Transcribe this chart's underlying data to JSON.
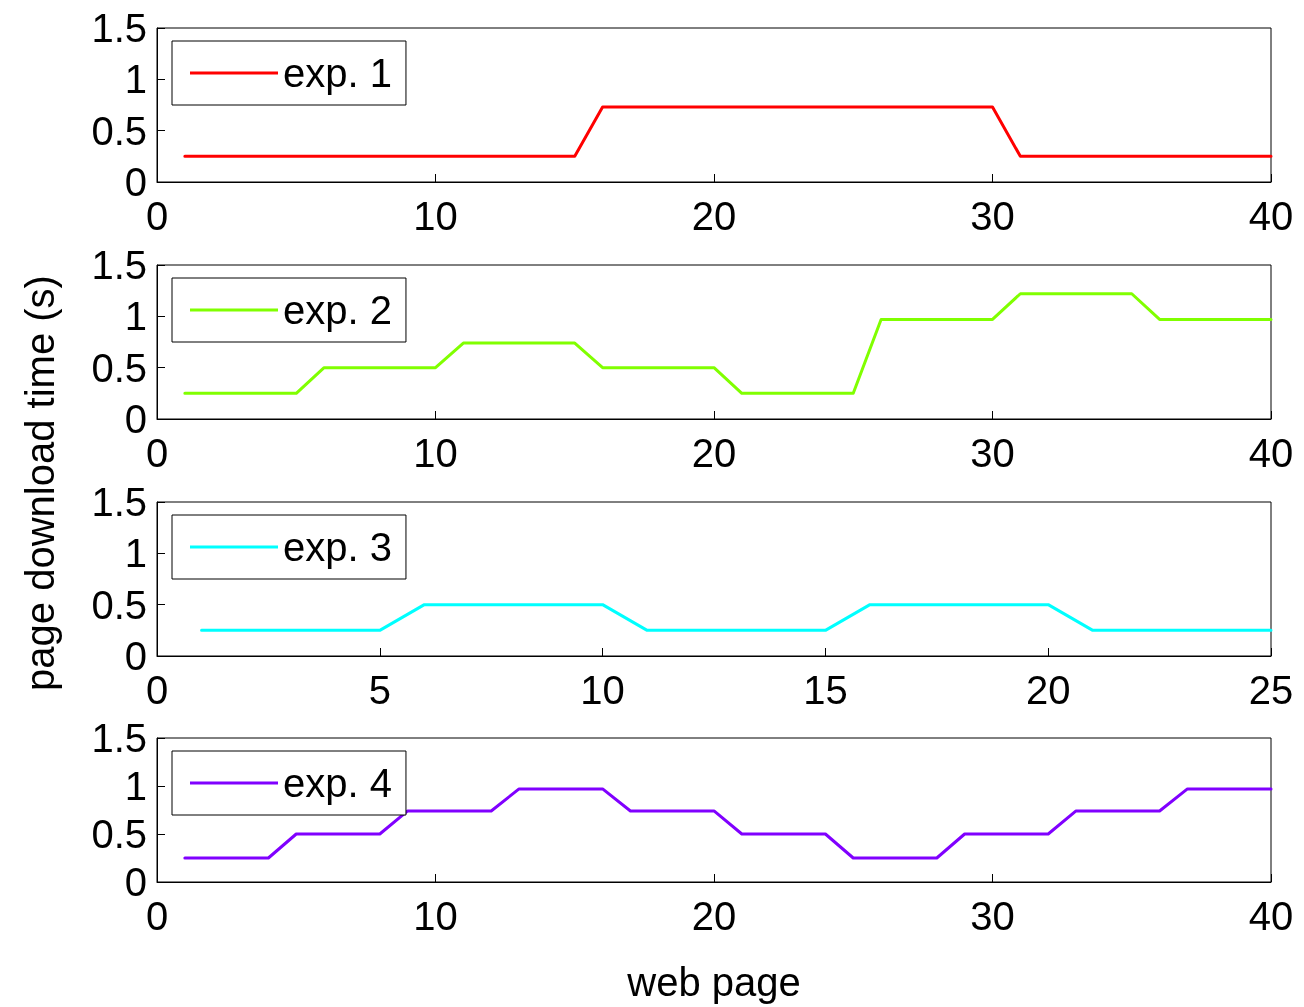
{
  "chart_data": [
    {
      "type": "line",
      "xlim": [
        0,
        40
      ],
      "xticks": [
        0,
        10,
        20,
        30,
        40
      ],
      "ylim": [
        0,
        1.5
      ],
      "yticks": [
        0,
        0.5,
        1,
        1.5
      ],
      "grid": false,
      "legend": "top left",
      "marker": "none",
      "line_style": "solid",
      "series": [
        {
          "name": "exp. 1",
          "color": "#ff0000",
          "x": [
            1,
            15,
            16,
            30,
            31,
            40
          ],
          "values": [
            0.25,
            0.25,
            0.73,
            0.73,
            0.25,
            0.25
          ]
        }
      ]
    },
    {
      "type": "line",
      "ylabel": "page download time (s)",
      "xlim": [
        0,
        40
      ],
      "xticks": [
        0,
        10,
        20,
        30,
        40
      ],
      "ylim": [
        0,
        1.5
      ],
      "yticks": [
        0,
        0.5,
        1,
        1.5
      ],
      "grid": false,
      "legend": "top left",
      "marker": "none",
      "line_style": "solid",
      "series": [
        {
          "name": "exp. 2",
          "color": "#80ff00",
          "x": [
            1,
            5,
            6,
            10,
            11,
            15,
            16,
            20,
            21,
            25,
            26,
            30,
            31,
            35,
            36,
            40
          ],
          "values": [
            0.25,
            0.25,
            0.5,
            0.5,
            0.74,
            0.74,
            0.5,
            0.5,
            0.25,
            0.25,
            0.97,
            0.97,
            1.22,
            1.22,
            0.97,
            0.97
          ]
        }
      ]
    },
    {
      "type": "line",
      "xlim": [
        0,
        25
      ],
      "xticks": [
        0,
        5,
        10,
        15,
        20,
        25
      ],
      "ylim": [
        0,
        1.5
      ],
      "yticks": [
        0,
        0.5,
        1,
        1.5
      ],
      "grid": false,
      "legend": "top left",
      "marker": "none",
      "line_style": "solid",
      "series": [
        {
          "name": "exp. 3",
          "color": "#00ffff",
          "x": [
            1,
            5,
            6,
            10,
            11,
            15,
            16,
            20,
            21,
            25
          ],
          "values": [
            0.25,
            0.25,
            0.5,
            0.5,
            0.25,
            0.25,
            0.5,
            0.5,
            0.25,
            0.25
          ]
        }
      ]
    },
    {
      "type": "line",
      "xlabel": "web page",
      "xlim": [
        0,
        40
      ],
      "xticks": [
        0,
        10,
        20,
        30,
        40
      ],
      "ylim": [
        0,
        1.5
      ],
      "yticks": [
        0,
        0.5,
        1,
        1.5
      ],
      "grid": false,
      "legend": "top left",
      "marker": "none",
      "line_style": "solid",
      "series": [
        {
          "name": "exp. 4",
          "color": "#8000ff",
          "x": [
            1,
            4,
            5,
            8,
            9,
            12,
            13,
            16,
            17,
            20,
            21,
            24,
            25,
            28,
            29,
            32,
            33,
            36,
            37,
            40
          ],
          "values": [
            0.25,
            0.25,
            0.5,
            0.5,
            0.74,
            0.74,
            0.97,
            0.97,
            0.74,
            0.74,
            0.5,
            0.5,
            0.25,
            0.25,
            0.5,
            0.5,
            0.74,
            0.74,
            0.97,
            0.97
          ]
        }
      ]
    }
  ]
}
